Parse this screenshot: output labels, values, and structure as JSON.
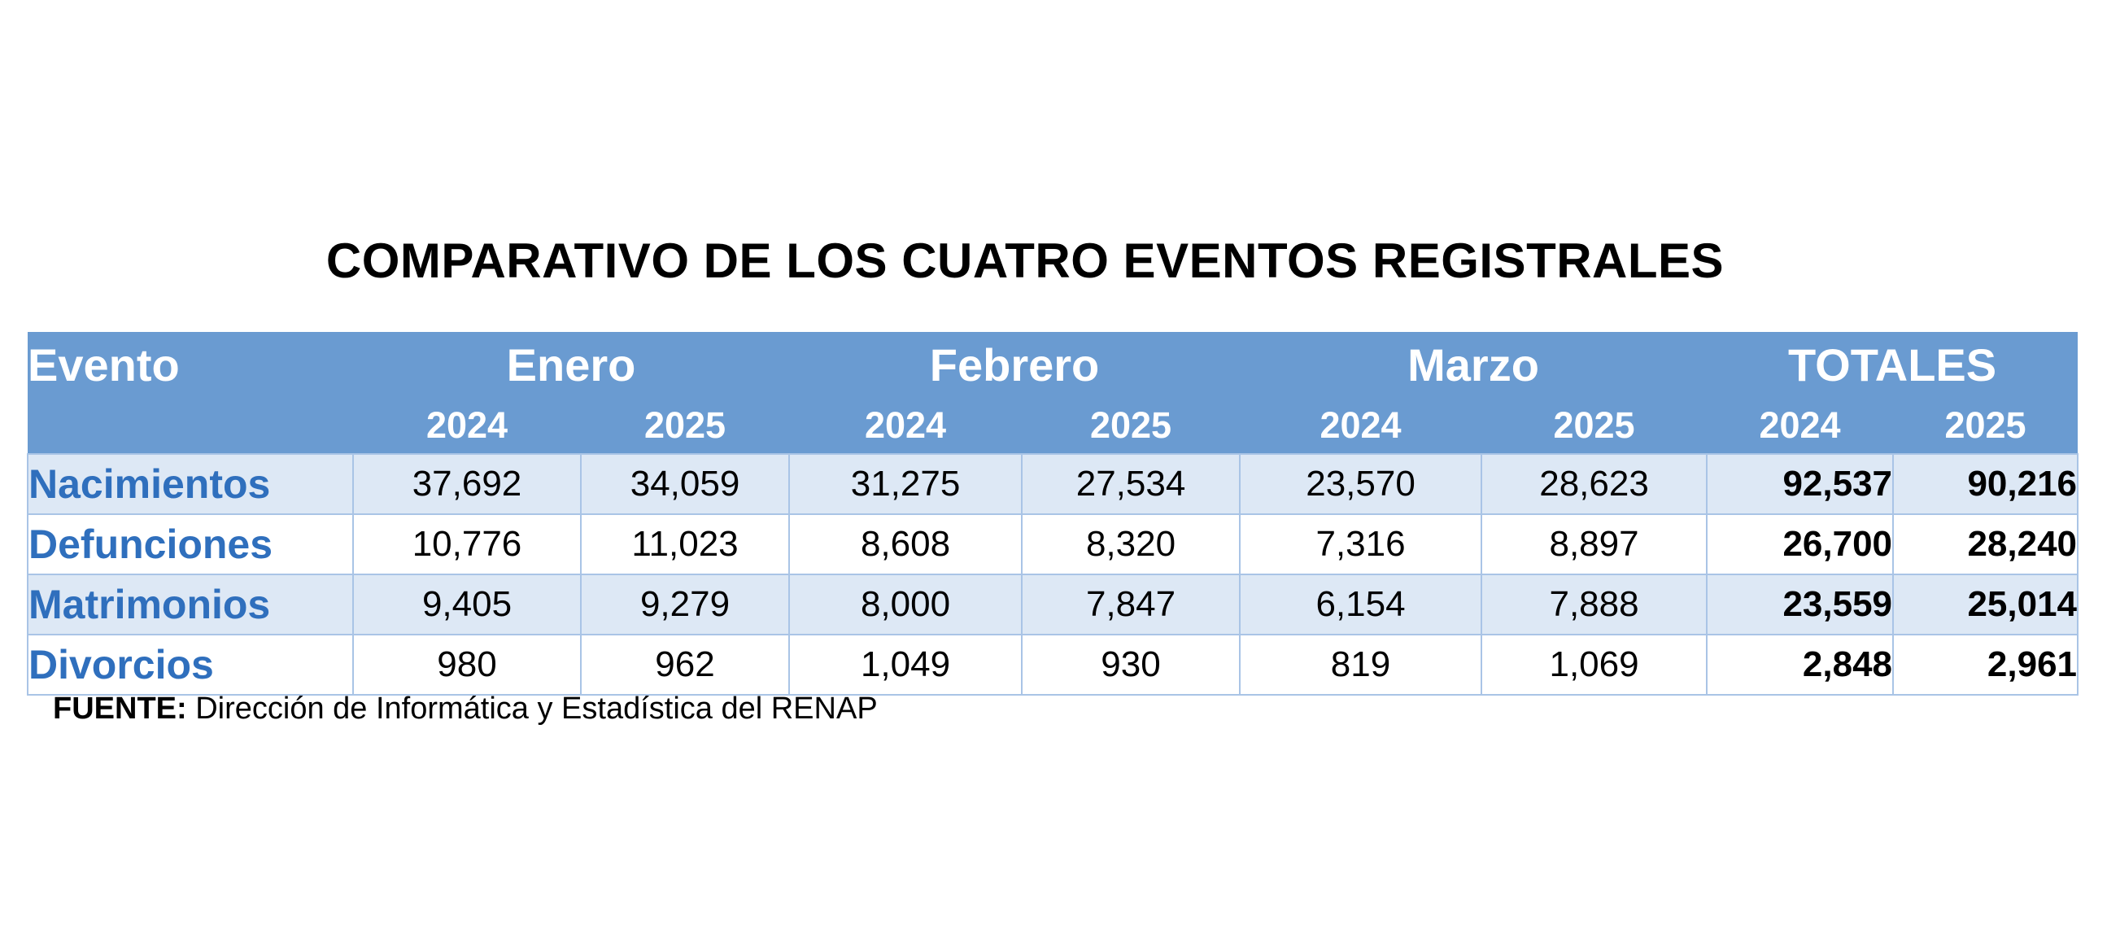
{
  "chart_data": {
    "type": "table",
    "title": "COMPARATIVO DE LOS CUATRO EVENTOS REGISTRALES",
    "row_header_label": "Evento",
    "groups": [
      {
        "label": "Enero",
        "years": [
          "2024",
          "2025"
        ]
      },
      {
        "label": "Febrero",
        "years": [
          "2024",
          "2025"
        ]
      },
      {
        "label": "Marzo",
        "years": [
          "2024",
          "2025"
        ]
      },
      {
        "label": "TOTALES",
        "years": [
          "2024",
          "2025"
        ]
      }
    ],
    "rows": [
      {
        "event": "Nacimientos",
        "values": [
          "37,692",
          "34,059",
          "31,275",
          "27,534",
          "23,570",
          "28,623",
          "92,537",
          "90,216"
        ]
      },
      {
        "event": "Defunciones",
        "values": [
          "10,776",
          "11,023",
          "8,608",
          "8,320",
          "7,316",
          "8,897",
          "26,700",
          "28,240"
        ]
      },
      {
        "event": "Matrimonios",
        "values": [
          "9,405",
          "9,279",
          "8,000",
          "7,847",
          "6,154",
          "7,888",
          "23,559",
          "25,014"
        ]
      },
      {
        "event": "Divorcios",
        "values": [
          "980",
          "962",
          "1,049",
          "930",
          "819",
          "1,069",
          "2,848",
          "2,961"
        ]
      }
    ]
  },
  "source": {
    "label": "FUENTE:",
    "text": " Dirección de Informática y Estadística del RENAP"
  },
  "colors": {
    "header_bg": "#6a9bd1",
    "header_text": "#ffffff",
    "event_text": "#2f6fbd",
    "shaded_row": "#dde8f5",
    "grid": "#a9c4e6"
  }
}
